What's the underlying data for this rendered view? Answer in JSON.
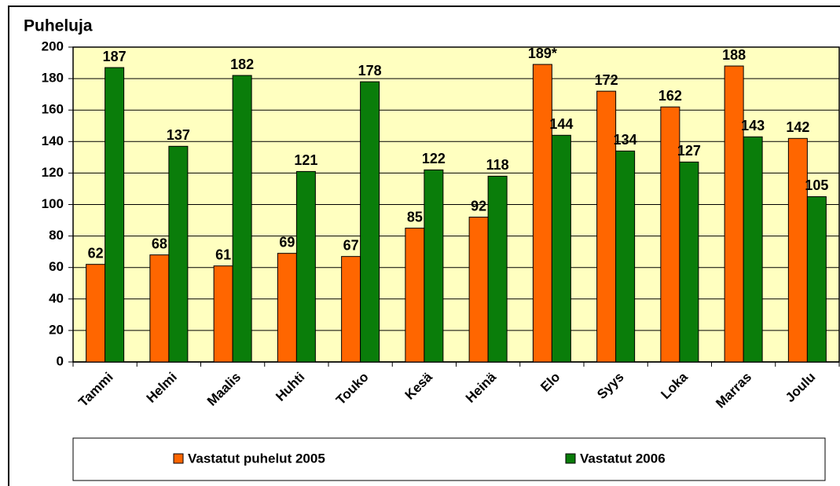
{
  "chart_data": {
    "type": "bar",
    "title": "Puheluja",
    "categories": [
      "Tammi",
      "Helmi",
      "Maalis",
      "Huhti",
      "Touko",
      "Kesä",
      "Heinä",
      "Elo",
      "Syys",
      "Loka",
      "Marras",
      "Joulu"
    ],
    "series": [
      {
        "name": "Vastatut puhelut 2005",
        "color": "#ff6600",
        "values": [
          62,
          68,
          61,
          69,
          67,
          85,
          92,
          189,
          172,
          162,
          188,
          142
        ],
        "value_labels": [
          "62",
          "68",
          "61",
          "69",
          "67",
          "85",
          "92",
          "189*",
          "172",
          "162",
          "188",
          "142"
        ]
      },
      {
        "name": "Vastatut 2006",
        "color": "#0a7d0a",
        "values": [
          187,
          137,
          182,
          121,
          178,
          122,
          118,
          144,
          134,
          127,
          143,
          105
        ]
      }
    ],
    "ylim": [
      0,
      200
    ],
    "yticks": [
      0,
      20,
      40,
      60,
      80,
      100,
      120,
      140,
      160,
      180,
      200
    ],
    "grid": true,
    "legend": "bottom",
    "plot_background": "#ffffc0"
  }
}
